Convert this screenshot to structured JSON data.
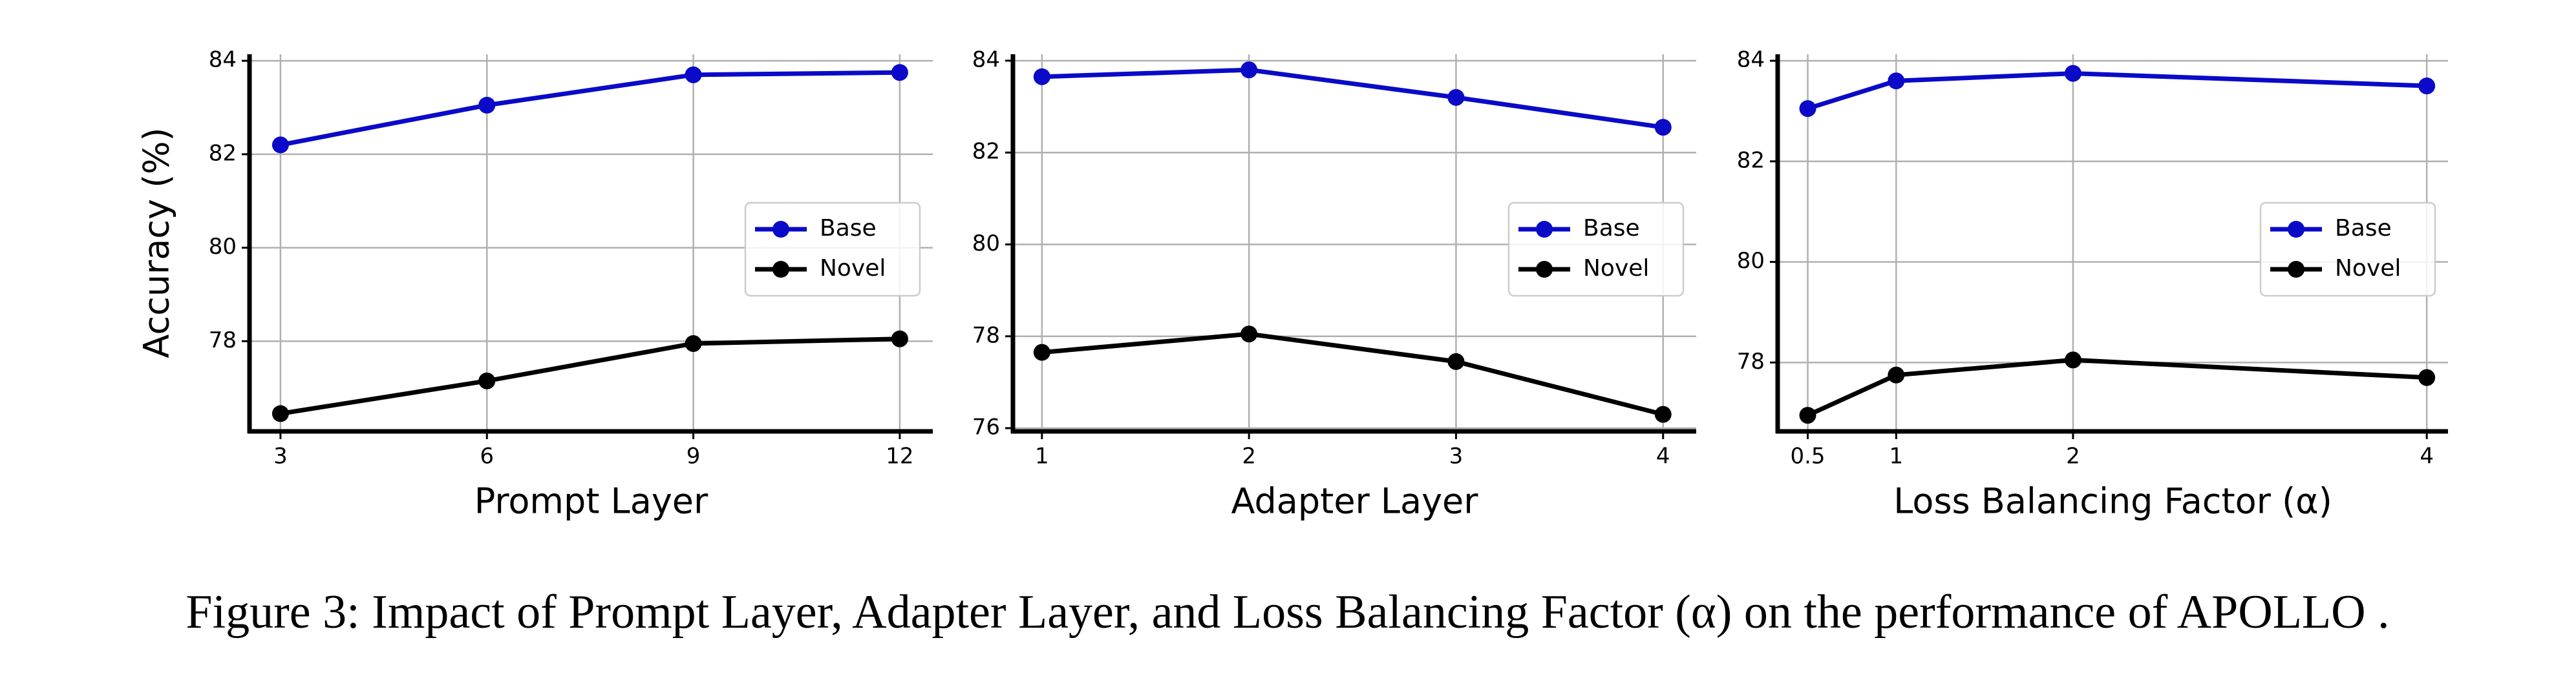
{
  "chart_data": [
    {
      "type": "line",
      "x_label": "Prompt Layer",
      "y_label": "Accuracy (%)",
      "x": [
        3,
        6,
        9,
        12
      ],
      "series": [
        {
          "name": "Base",
          "color": "#0a0ac8",
          "values": [
            82.2,
            83.05,
            83.7,
            83.75
          ]
        },
        {
          "name": "Novel",
          "color": "#000000",
          "values": [
            76.45,
            77.15,
            77.95,
            78.05
          ]
        }
      ],
      "xlim": [
        2.55,
        12.48
      ],
      "ylim": [
        76.07,
        84.14
      ],
      "xticks": [
        3,
        6,
        9,
        12
      ],
      "yticks": [
        78,
        80,
        82,
        84
      ],
      "grid": true,
      "legend": "center right"
    },
    {
      "type": "line",
      "x_label": "Adapter Layer",
      "x": [
        1,
        2,
        3,
        4
      ],
      "series": [
        {
          "name": "Base",
          "color": "#0a0ac8",
          "values": [
            83.65,
            83.8,
            83.2,
            82.55
          ]
        },
        {
          "name": "Novel",
          "color": "#000000",
          "values": [
            77.65,
            78.05,
            77.45,
            76.3
          ]
        }
      ],
      "xlim": [
        0.86,
        4.16
      ],
      "ylim": [
        75.93,
        84.14
      ],
      "xticks": [
        1,
        2,
        3,
        4
      ],
      "yticks": [
        76,
        78,
        80,
        82,
        84
      ],
      "grid": true,
      "legend": "center right"
    },
    {
      "type": "line",
      "x_label": "Loss Balancing Factor (α)",
      "x": [
        0.5,
        1,
        2,
        4
      ],
      "series": [
        {
          "name": "Base",
          "color": "#0a0ac8",
          "values": [
            83.05,
            83.6,
            83.75,
            83.5
          ]
        },
        {
          "name": "Novel",
          "color": "#000000",
          "values": [
            76.95,
            77.75,
            78.05,
            77.7
          ]
        }
      ],
      "xlim": [
        0.33,
        4.12
      ],
      "ylim": [
        76.63,
        84.13
      ],
      "xticks": [
        0.5,
        1,
        2,
        4
      ],
      "yticks": [
        78,
        80,
        82,
        84
      ],
      "grid": true,
      "legend": "center right"
    }
  ],
  "caption": "Figure 3: Impact of Prompt Layer, Adapter Layer, and Loss Balancing Factor (α) on the performance of APOLLO ."
}
